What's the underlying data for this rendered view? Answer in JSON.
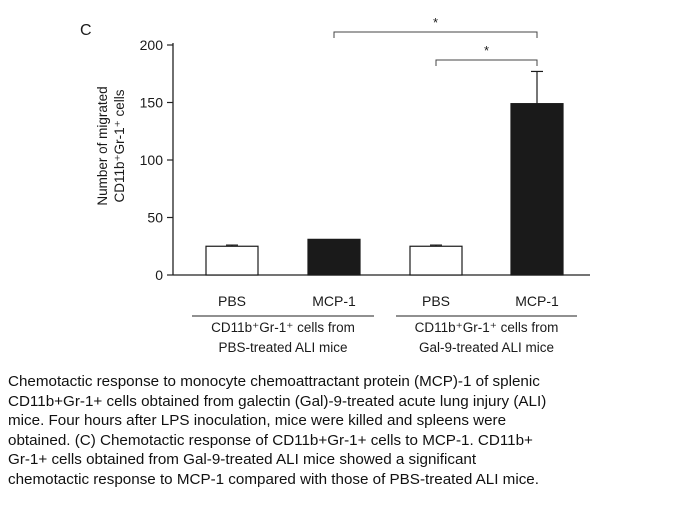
{
  "chart_data": {
    "type": "bar",
    "panel_label": "C",
    "categories": [
      "PBS",
      "MCP-1",
      "PBS",
      "MCP-1"
    ],
    "values": [
      25,
      31,
      25,
      149
    ],
    "errors": [
      1,
      0,
      1,
      28
    ],
    "bar_colors": [
      "#ffffff",
      "#1a1a1a",
      "#ffffff",
      "#1a1a1a"
    ],
    "ylabel_lines": [
      "Number of migrated",
      "CD11b⁺Gr-1⁺ cells"
    ],
    "ylim": [
      0,
      200
    ],
    "yticks": [
      0,
      50,
      100,
      150,
      200
    ],
    "groups": [
      {
        "line1": "CD11b⁺Gr-1⁺ cells from",
        "line2": "PBS-treated ALI mice",
        "categories": [
          0,
          1
        ]
      },
      {
        "line1": "CD11b⁺Gr-1⁺ cells from",
        "line2": "Gal-9-treated ALI mice",
        "categories": [
          2,
          3
        ]
      }
    ],
    "significance": [
      {
        "from": 1,
        "to": 3,
        "label": "*"
      },
      {
        "from": 2,
        "to": 3,
        "label": "*"
      }
    ]
  },
  "caption": {
    "lines": [
      "Chemotactic response to monocyte chemoattractant protein (MCP)-1 of splenic",
      "CD11b+Gr-1+ cells obtained from galectin (Gal)-9-treated acute lung injury (ALI)",
      "mice. Four hours after LPS inoculation, mice were killed and spleens were",
      "obtained. (C) Chemotactic response of CD11b+Gr-1+ cells to MCP-1. CD11b+",
      "Gr-1+ cells obtained from Gal-9-treated ALI mice showed a significant",
      "chemotactic response to MCP-1 compared with those of PBS-treated ALI mice."
    ]
  }
}
